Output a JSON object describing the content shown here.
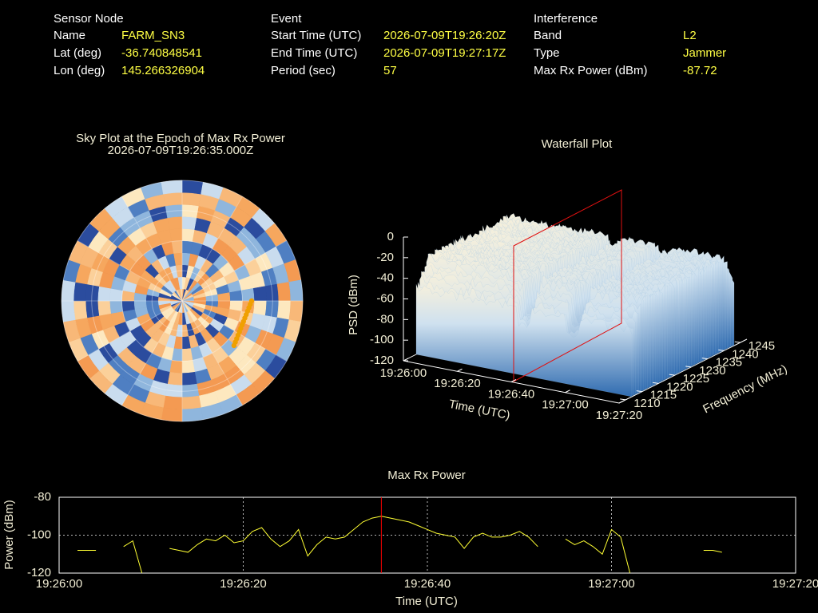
{
  "info": {
    "columns": [
      {
        "heading": "Sensor Node",
        "rows": [
          [
            "Name",
            "FARM_SN3"
          ],
          [
            "Lat (deg)",
            -36.740848541
          ],
          [
            "Lon (deg)",
            145.266326904
          ]
        ]
      },
      {
        "heading": "Event",
        "rows": [
          [
            "Start Time (UTC)",
            "2026-07-09T19:26:20Z"
          ],
          [
            "End Time (UTC)",
            "2026-07-09T19:27:17Z"
          ],
          [
            "Period (sec)",
            57
          ]
        ]
      },
      {
        "heading": "Interference",
        "rows": [
          [
            "Band",
            "L2"
          ],
          [
            "Type",
            "Jammer"
          ],
          [
            "Max Rx Power (dBm)",
            -87.72
          ]
        ]
      }
    ]
  },
  "chart_data": [
    {
      "type": "skyplot",
      "title": "Sky Plot at the Epoch of Max Rx Power",
      "subtitle": "2026-07-09T19:26:35.000Z"
    },
    {
      "type": "waterfall3d",
      "title": "Waterfall Plot",
      "xlabel": "Time (UTC)",
      "ylabel": "Frequency (MHz)",
      "zlabel": "PSD (dBm)",
      "xlim": [
        0,
        80
      ],
      "xticks": [
        {
          "value": 0,
          "label": "19:26:00"
        },
        {
          "value": 20,
          "label": "19:26:20"
        },
        {
          "value": 40,
          "label": "19:26:40"
        },
        {
          "value": 60,
          "label": "19:27:00"
        },
        {
          "value": 80,
          "label": "19:27:20"
        }
      ],
      "ylim": [
        1208,
        1247
      ],
      "yticks": [
        1210,
        1215,
        1220,
        1225,
        1230,
        1235,
        1240,
        1245
      ],
      "zlim": [
        -120,
        0
      ],
      "zticks": [
        -120,
        -100,
        -80,
        -60,
        -40,
        -20,
        0
      ]
    },
    {
      "type": "line",
      "title": "Max Rx Power",
      "xlabel": "Time (UTC)",
      "ylabel": "Power (dBm)",
      "x": [
        0,
        1,
        2,
        3,
        4,
        5,
        6,
        7,
        8,
        9,
        10,
        11,
        12,
        13,
        14,
        15,
        16,
        17,
        18,
        19,
        20,
        21,
        22,
        23,
        24,
        25,
        26,
        27,
        28,
        29,
        30,
        31,
        32,
        33,
        34,
        35,
        36,
        37,
        38,
        39,
        40,
        41,
        42,
        43,
        44,
        45,
        46,
        47,
        48,
        49,
        50,
        51,
        52,
        53,
        54,
        55,
        56,
        57,
        58,
        59,
        60,
        61,
        62,
        63,
        64,
        65,
        66,
        67,
        68,
        69,
        70,
        71,
        72,
        73,
        74,
        75,
        76,
        77,
        78,
        79,
        80
      ],
      "series": [
        {
          "color": "#ffff33",
          "values": [
            null,
            null,
            -108,
            -108,
            -108,
            null,
            null,
            -106,
            -103,
            -120,
            null,
            null,
            -107,
            -108,
            -109,
            -105,
            -102,
            -103,
            -100,
            -104,
            -103,
            -98,
            -96,
            -102,
            -106,
            -103,
            -97,
            -111,
            -105,
            -101,
            -102,
            -101,
            -97,
            -93,
            -91,
            -90,
            -91,
            -92,
            -93,
            -95,
            -97,
            -99,
            -100,
            -101,
            -107,
            -101,
            -99,
            -101,
            -101,
            -100,
            -98,
            -101,
            -106,
            null,
            null,
            -102,
            -105,
            -103,
            -106,
            -110,
            -97,
            -101,
            -120,
            null,
            null,
            null,
            null,
            null,
            null,
            null,
            -108,
            -108,
            -109,
            null,
            null,
            null,
            null,
            null,
            null,
            null,
            null
          ]
        }
      ],
      "xlim": [
        0,
        80
      ],
      "xticks": [
        {
          "value": 0,
          "label": "19:26:00"
        },
        {
          "value": 20,
          "label": "19:26:20"
        },
        {
          "value": 40,
          "label": "19:26:40"
        },
        {
          "value": 60,
          "label": "19:27:00"
        },
        {
          "value": 80,
          "label": "19:27:20"
        }
      ],
      "ylim": [
        -120,
        -80
      ],
      "yticks": [
        -120,
        -100,
        -80
      ],
      "grid": true,
      "marker_x": 35,
      "marker_color": "#ff0000"
    }
  ]
}
